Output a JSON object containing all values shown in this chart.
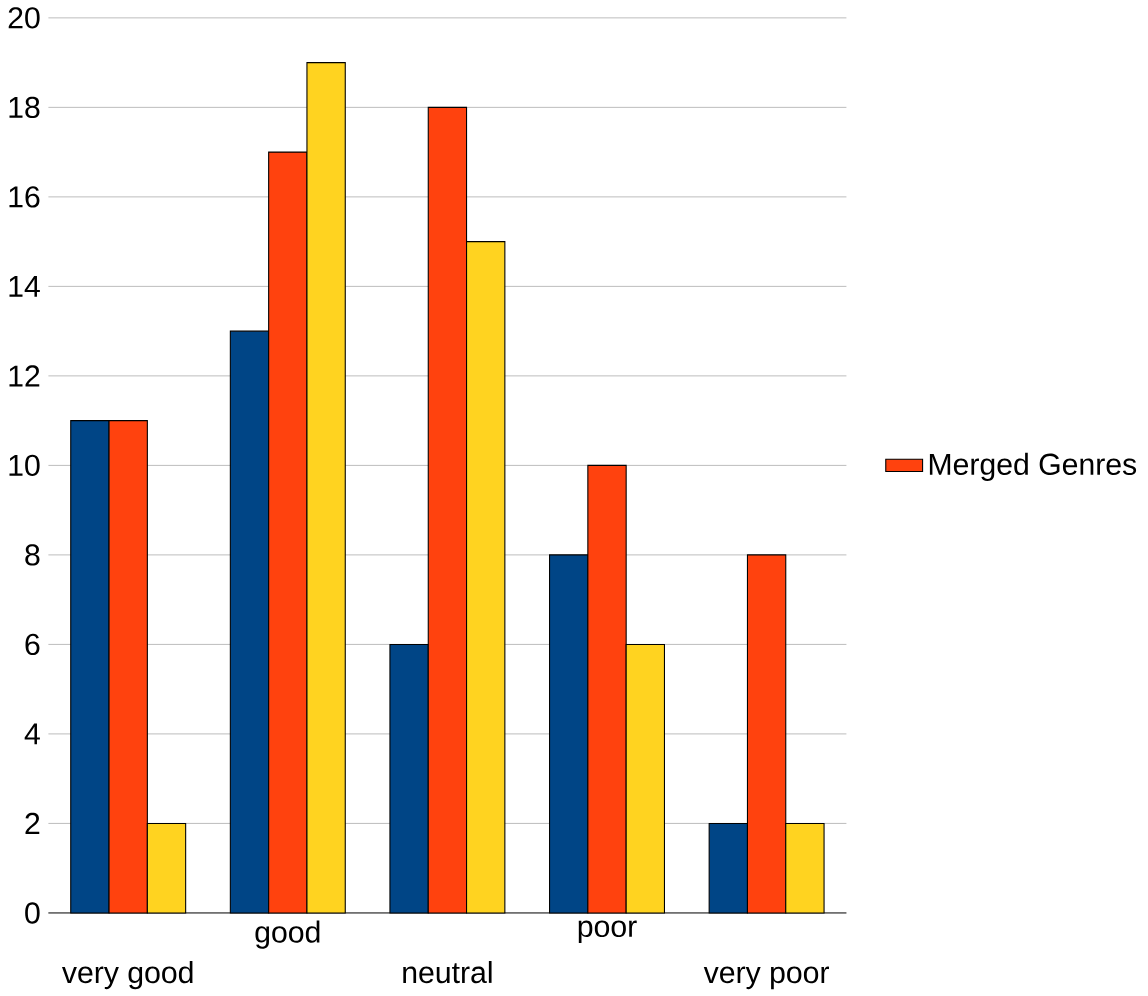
{
  "chart_data": {
    "type": "bar",
    "categories": [
      "very good",
      "good",
      "neutral",
      "poor",
      "very poor"
    ],
    "series": [
      {
        "color": "#004586",
        "values": [
          11,
          13,
          6,
          8,
          2
        ]
      },
      {
        "name": "Merged Genres",
        "color": "#ff420e",
        "values": [
          11,
          17,
          18,
          10,
          8
        ]
      },
      {
        "color": "#ffd320",
        "values": [
          2,
          19,
          15,
          6,
          2
        ]
      }
    ],
    "ylim": [
      0,
      20
    ],
    "yticks": [
      0,
      2,
      4,
      6,
      8,
      10,
      12,
      14,
      16,
      18,
      20
    ],
    "grid": "y",
    "legend": "right"
  }
}
